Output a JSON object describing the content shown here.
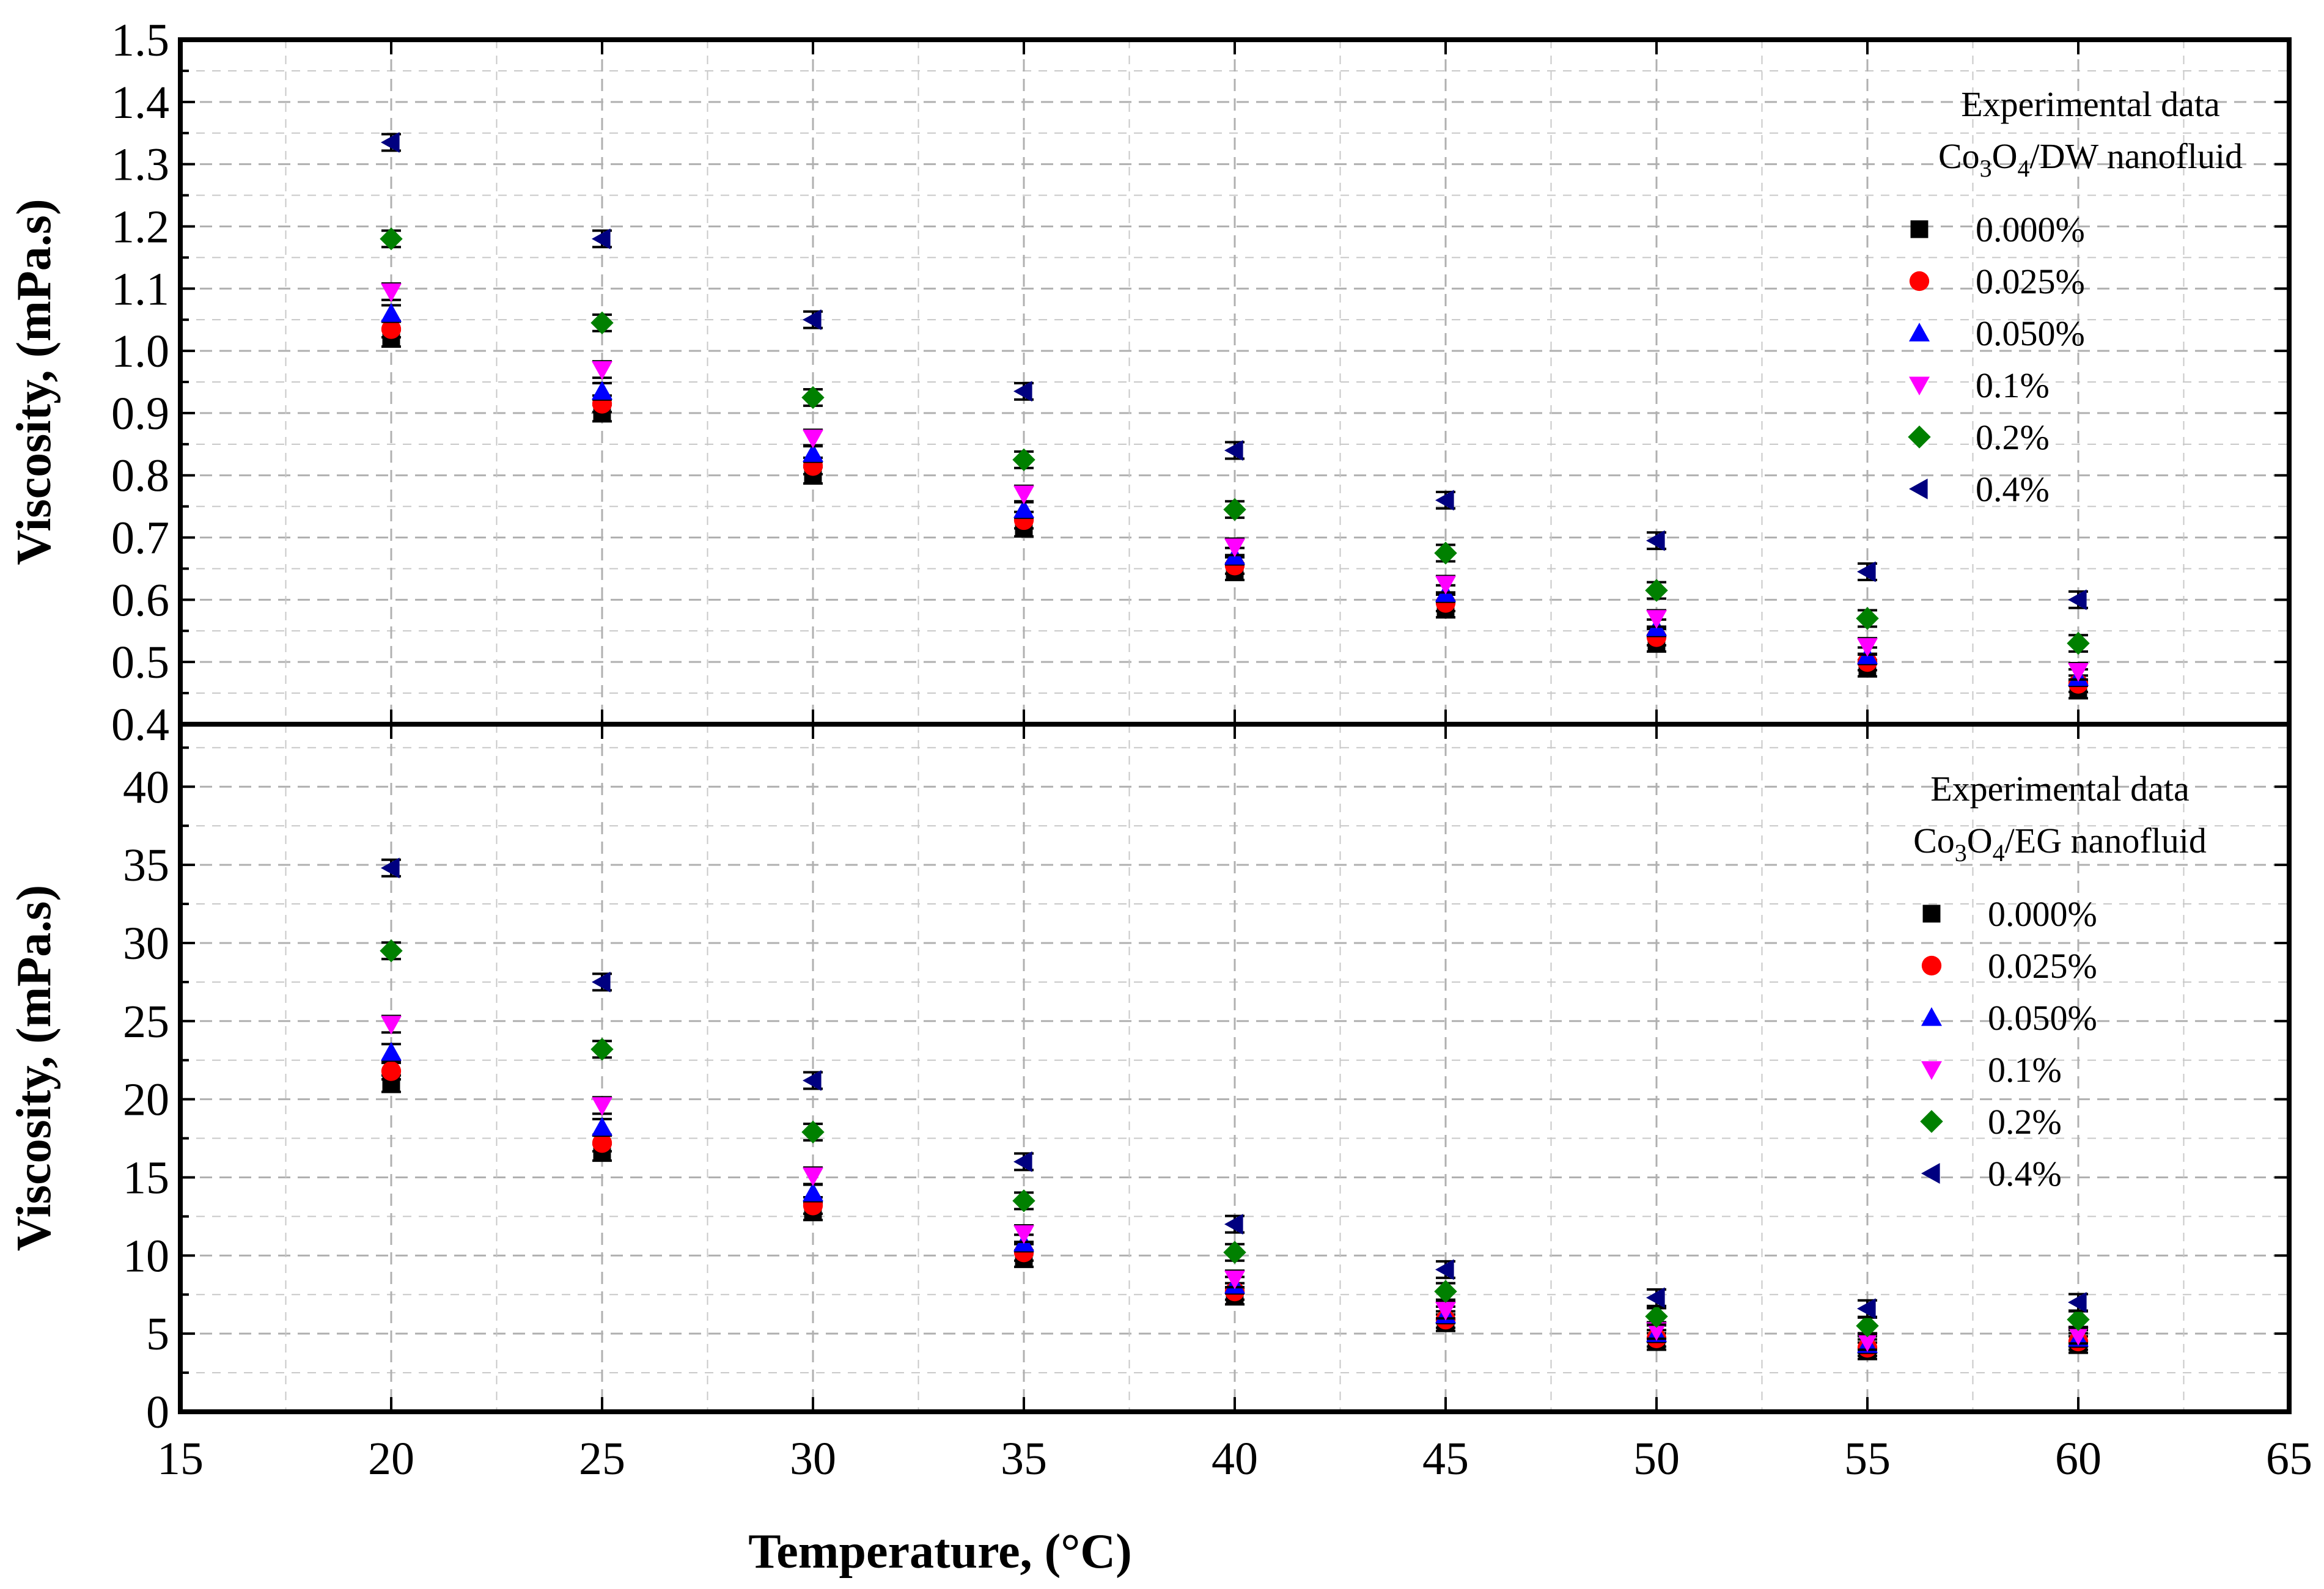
{
  "chart_data": {
    "type": "scatter",
    "xlabel": "Temperature, (°C)",
    "xlim": [
      15,
      65
    ],
    "xticks": [
      15,
      20,
      25,
      30,
      35,
      40,
      45,
      50,
      55,
      60,
      65
    ],
    "x": [
      20,
      25,
      30,
      35,
      40,
      45,
      50,
      55,
      60
    ],
    "grid": true,
    "series_styles": [
      {
        "name": "0.000%",
        "marker": "square",
        "color": "#000000"
      },
      {
        "name": "0.025%",
        "marker": "circle",
        "color": "#ff0000"
      },
      {
        "name": "0.050%",
        "marker": "triangle-up",
        "color": "#0000ff"
      },
      {
        "name": "0.1%",
        "marker": "triangle-down",
        "color": "#ff00ff"
      },
      {
        "name": "0.2%",
        "marker": "diamond",
        "color": "#008000"
      },
      {
        "name": "0.4%",
        "marker": "triangle-left",
        "color": "#000080"
      }
    ],
    "panels": [
      {
        "id": "top",
        "ylabel": "Viscosity, (mPa.s)",
        "ylim": [
          0.4,
          1.5
        ],
        "yticks": [
          "0.4",
          "0.5",
          "0.6",
          "0.7",
          "0.8",
          "0.9",
          "1.0",
          "1.1",
          "1.2",
          "1.3",
          "1.4",
          "1.5"
        ],
        "legend_placement": "top-right",
        "legend_title_line1": "Experimental data",
        "legend_title_line2": {
          "a": "Co",
          "a_sub": "3",
          "b": "O",
          "b_sub": "4",
          "c": "/DW nanofluid"
        },
        "series": [
          {
            "name": "0.000%",
            "values": [
              1.02,
              0.9,
              0.8,
              0.715,
              0.645,
              0.585,
              0.53,
              0.49,
              0.455
            ]
          },
          {
            "name": "0.025%",
            "values": [
              1.035,
              0.915,
              0.815,
              0.728,
              0.655,
              0.595,
              0.54,
              0.5,
              0.465
            ]
          },
          {
            "name": "0.050%",
            "values": [
              1.06,
              0.935,
              0.835,
              0.745,
              0.67,
              0.61,
              0.555,
              0.51,
              0.475
            ]
          },
          {
            "name": "0.1%",
            "values": [
              1.095,
              0.97,
              0.86,
              0.77,
              0.685,
              0.625,
              0.57,
              0.525,
              0.485
            ]
          },
          {
            "name": "0.2%",
            "values": [
              1.18,
              1.045,
              0.925,
              0.825,
              0.745,
              0.675,
              0.615,
              0.57,
              0.53
            ]
          },
          {
            "name": "0.4%",
            "values": [
              1.335,
              1.18,
              1.05,
              0.935,
              0.84,
              0.76,
              0.695,
              0.645,
              0.6
            ]
          }
        ]
      },
      {
        "id": "bottom",
        "ylabel": "Viscosity, (mPa.s)",
        "ylim": [
          0,
          44
        ],
        "yticks": [
          "0",
          "5",
          "10",
          "15",
          "20",
          "25",
          "30",
          "35",
          "40"
        ],
        "legend_placement": "top-right",
        "legend_title_line1": "Experimental data",
        "legend_title_line2": {
          "a": "Co",
          "a_sub": "3",
          "b": "O",
          "b_sub": "4",
          "c": "/EG nanofluid"
        },
        "series": [
          {
            "name": "0.000%",
            "values": [
              21.0,
              16.6,
              12.8,
              9.8,
              7.4,
              5.7,
              4.5,
              3.9,
              4.3
            ]
          },
          {
            "name": "0.025%",
            "values": [
              21.8,
              17.2,
              13.2,
              10.2,
              7.7,
              5.9,
              4.7,
              4.1,
              4.5
            ]
          },
          {
            "name": "0.050%",
            "values": [
              23.0,
              18.2,
              14.0,
              10.8,
              8.1,
              6.2,
              5.0,
              4.3,
              4.7
            ]
          },
          {
            "name": "0.1%",
            "values": [
              24.8,
              19.6,
              15.1,
              11.4,
              8.5,
              6.5,
              5.2,
              4.5,
              4.9
            ]
          },
          {
            "name": "0.2%",
            "values": [
              29.5,
              23.2,
              17.9,
              13.5,
              10.2,
              7.7,
              6.1,
              5.5,
              5.9
            ]
          },
          {
            "name": "0.4%",
            "values": [
              34.8,
              27.5,
              21.2,
              16.0,
              12.0,
              9.1,
              7.3,
              6.6,
              7.0
            ]
          }
        ]
      }
    ]
  }
}
